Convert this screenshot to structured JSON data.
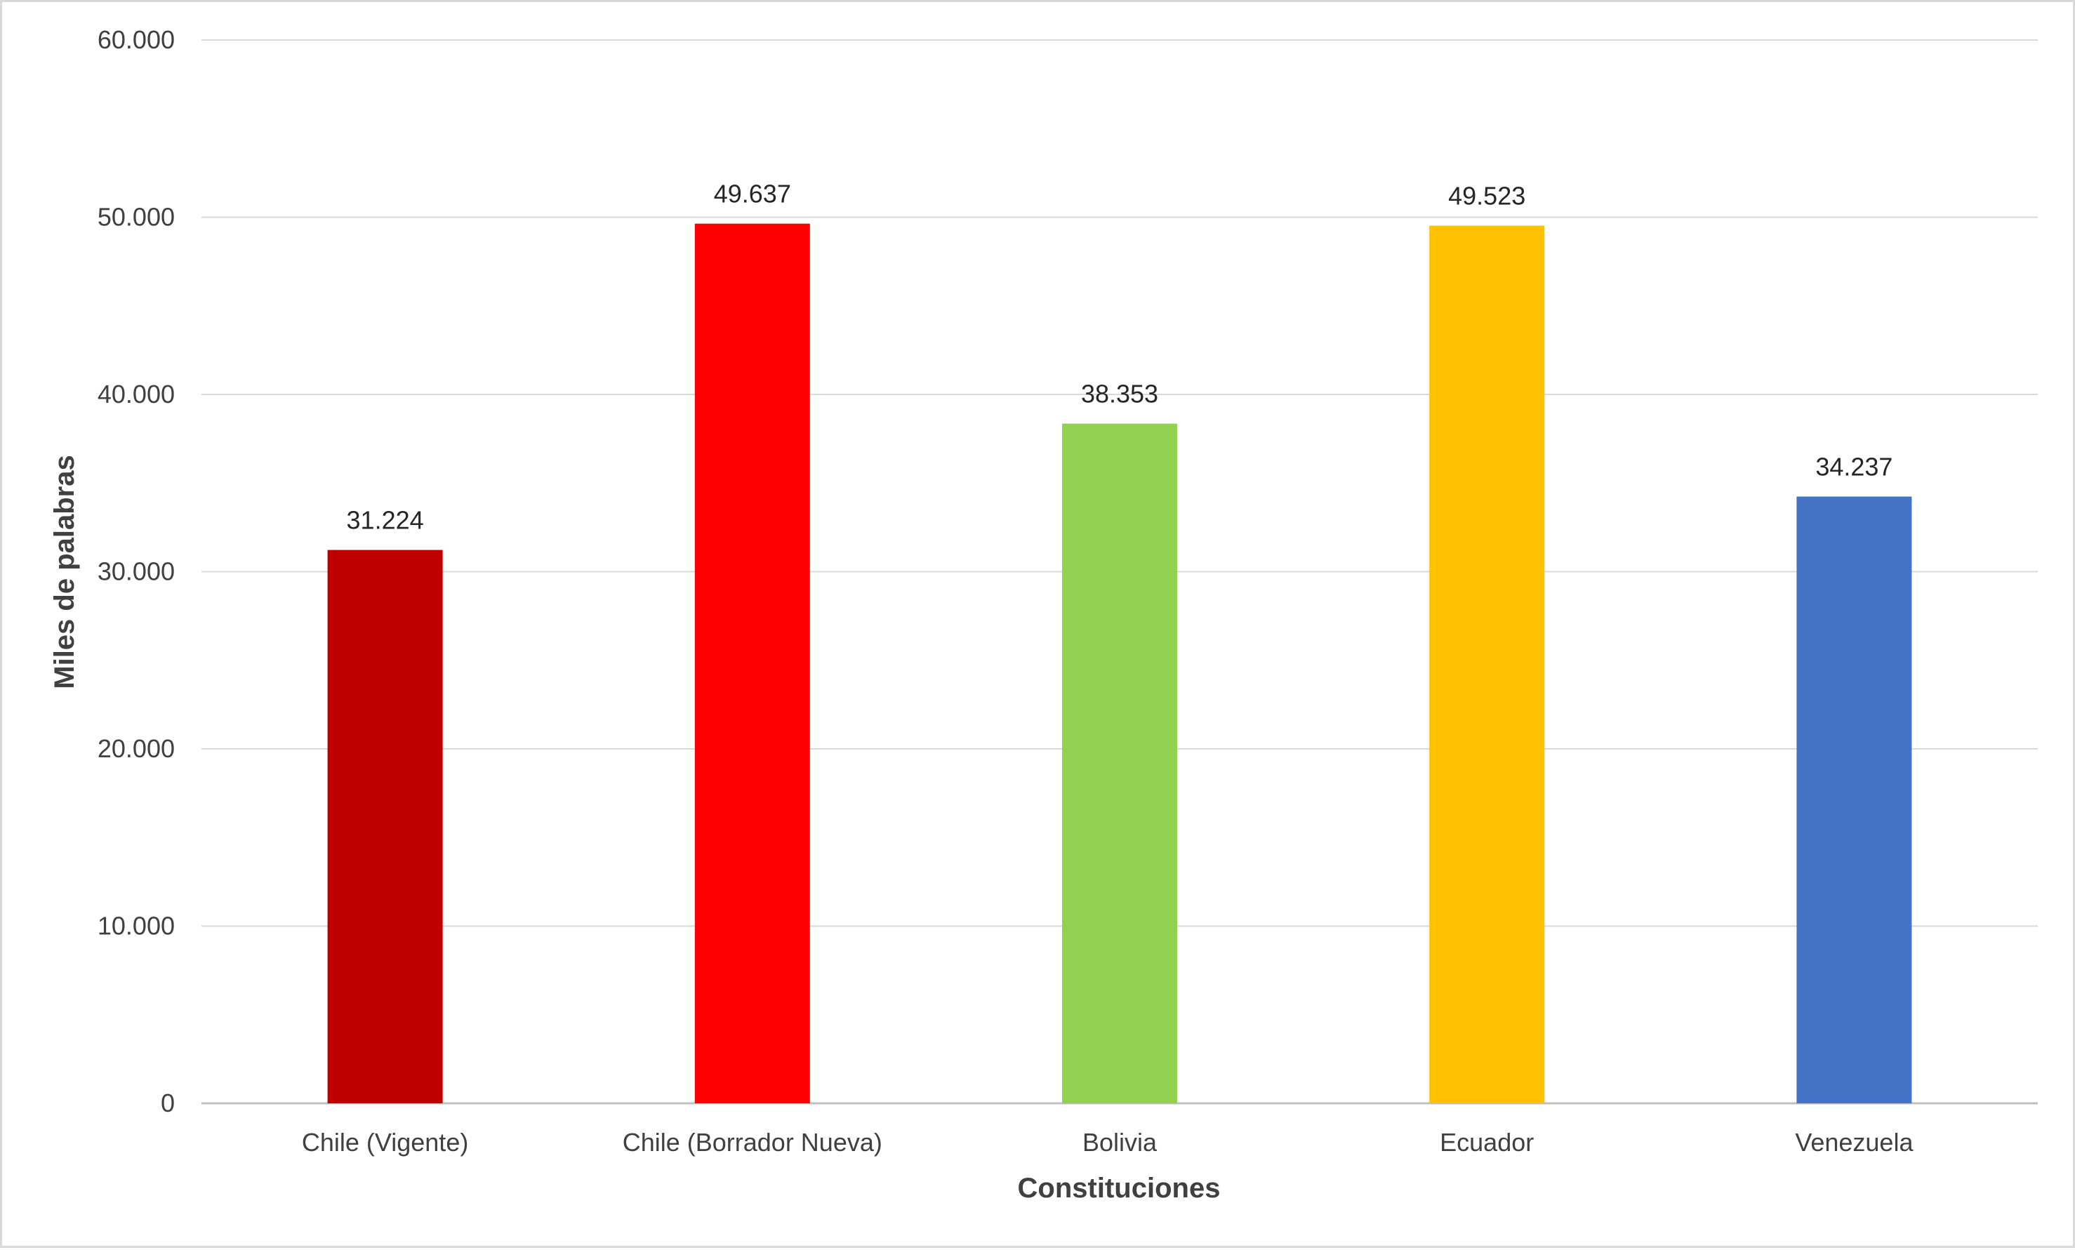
{
  "chart_data": {
    "type": "bar",
    "title": "",
    "xlabel": "Constituciones",
    "ylabel": "Miles de palabras",
    "categories": [
      "Chile (Vigente)",
      "Chile (Borrador Nueva)",
      "Bolivia",
      "Ecuador",
      "Venezuela"
    ],
    "values": [
      31224,
      49637,
      38353,
      49523,
      34237
    ],
    "value_labels": [
      "31.224",
      "49.637",
      "38.353",
      "49.523",
      "34.237"
    ],
    "bar_colors": [
      "#c00000",
      "#ff0000",
      "#92d050",
      "#ffc000",
      "#4472c4"
    ],
    "ylim": [
      0,
      60000
    ],
    "yticks": [
      0,
      10000,
      20000,
      30000,
      40000,
      50000,
      60000
    ],
    "ytick_labels": [
      "0",
      "10.000",
      "20.000",
      "30.000",
      "40.000",
      "50.000",
      "60.000"
    ],
    "grid": true,
    "legend": "none"
  }
}
